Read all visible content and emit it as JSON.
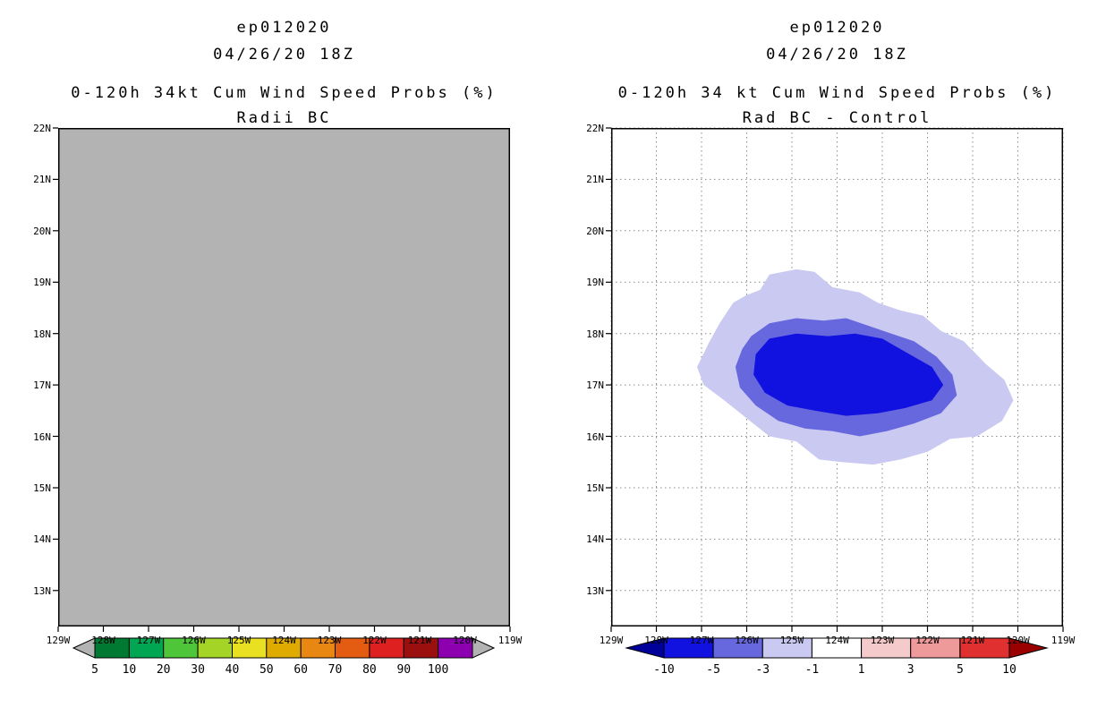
{
  "axes": {
    "lat_ticks": [
      "22N",
      "21N",
      "20N",
      "19N",
      "18N",
      "17N",
      "16N",
      "15N",
      "14N",
      "13N"
    ],
    "lon_ticks": [
      "129W",
      "128W",
      "127W",
      "126W",
      "125W",
      "124W",
      "123W",
      "122W",
      "121W",
      "120W",
      "119W"
    ],
    "lat_range": [
      12.3,
      22
    ],
    "lon_range": [
      129,
      119
    ],
    "grid_style": "dotted"
  },
  "chart_data": [
    {
      "type": "heatmap",
      "subtype": "filled-contour-probability-map",
      "title": "ep012020",
      "init_time": "04/26/20 18Z",
      "heading": "0-120h 34kt Cum Wind Speed Probs (%)",
      "subheading": "Radii BC",
      "map_background": "#b3b3b3",
      "grid": false,
      "contours": [],
      "field_note": "entire domain below lowest contour level (uniform gray)",
      "colorbar": {
        "levels": [
          5,
          10,
          20,
          30,
          40,
          50,
          60,
          70,
          80,
          90,
          100
        ],
        "labels": [
          "5",
          "10",
          "20",
          "30",
          "40",
          "50",
          "60",
          "70",
          "80",
          "90",
          "100"
        ],
        "cell_colors": [
          "#007a33",
          "#00a651",
          "#4fc639",
          "#a4d426",
          "#e8e020",
          "#e0ab00",
          "#e88711",
          "#e35c11",
          "#df2020",
          "#9c0f0f",
          "#8c00b0"
        ],
        "left_arrow_color": "#b3b3b3",
        "right_arrow_color": "#b3b3b3",
        "arrow_width": 24
      }
    },
    {
      "type": "heatmap",
      "subtype": "filled-contour-difference-map",
      "title": "ep012020",
      "init_time": "04/26/20 18Z",
      "heading": "0-120h 34 kt Cum Wind Speed Probs (%)",
      "subheading": "Rad BC - Control",
      "map_background": "#ffffff",
      "grid": true,
      "contours": [
        {
          "level": -1,
          "color": "#c9c9f2",
          "points": [
            [
              126.3,
              18.6
            ],
            [
              126.0,
              18.75
            ],
            [
              125.7,
              18.85
            ],
            [
              125.5,
              19.15
            ],
            [
              124.9,
              19.25
            ],
            [
              124.5,
              19.2
            ],
            [
              124.1,
              18.9
            ],
            [
              123.5,
              18.8
            ],
            [
              123.1,
              18.6
            ],
            [
              122.6,
              18.45
            ],
            [
              122.1,
              18.35
            ],
            [
              121.7,
              18.05
            ],
            [
              121.2,
              17.85
            ],
            [
              120.7,
              17.4
            ],
            [
              120.3,
              17.1
            ],
            [
              120.1,
              16.7
            ],
            [
              120.35,
              16.3
            ],
            [
              120.9,
              16.0
            ],
            [
              121.5,
              15.95
            ],
            [
              122.0,
              15.7
            ],
            [
              122.6,
              15.55
            ],
            [
              123.2,
              15.45
            ],
            [
              123.9,
              15.5
            ],
            [
              124.4,
              15.55
            ],
            [
              124.9,
              15.9
            ],
            [
              125.5,
              16.0
            ],
            [
              126.0,
              16.35
            ],
            [
              126.5,
              16.7
            ],
            [
              126.95,
              17.0
            ],
            [
              127.1,
              17.35
            ],
            [
              126.85,
              17.8
            ],
            [
              126.6,
              18.2
            ]
          ]
        },
        {
          "level": -3,
          "color": "#6868de",
          "points": [
            [
              125.9,
              17.95
            ],
            [
              125.5,
              18.2
            ],
            [
              124.9,
              18.3
            ],
            [
              124.3,
              18.25
            ],
            [
              123.8,
              18.3
            ],
            [
              123.3,
              18.15
            ],
            [
              122.8,
              18.0
            ],
            [
              122.3,
              17.85
            ],
            [
              121.8,
              17.55
            ],
            [
              121.45,
              17.2
            ],
            [
              121.35,
              16.8
            ],
            [
              121.7,
              16.45
            ],
            [
              122.3,
              16.25
            ],
            [
              122.9,
              16.1
            ],
            [
              123.5,
              16.0
            ],
            [
              124.1,
              16.1
            ],
            [
              124.7,
              16.15
            ],
            [
              125.3,
              16.3
            ],
            [
              125.8,
              16.6
            ],
            [
              126.15,
              16.95
            ],
            [
              126.25,
              17.35
            ],
            [
              126.1,
              17.7
            ]
          ]
        },
        {
          "level": -5,
          "color": "#1212e0",
          "points": [
            [
              125.5,
              17.9
            ],
            [
              124.9,
              18.0
            ],
            [
              124.2,
              17.95
            ],
            [
              123.6,
              18.0
            ],
            [
              123.0,
              17.9
            ],
            [
              122.4,
              17.6
            ],
            [
              121.9,
              17.35
            ],
            [
              121.65,
              17.0
            ],
            [
              121.9,
              16.7
            ],
            [
              122.5,
              16.55
            ],
            [
              123.1,
              16.45
            ],
            [
              123.8,
              16.4
            ],
            [
              124.5,
              16.5
            ],
            [
              125.1,
              16.6
            ],
            [
              125.6,
              16.85
            ],
            [
              125.85,
              17.2
            ],
            [
              125.8,
              17.6
            ]
          ]
        }
      ],
      "colorbar": {
        "levels": [
          -10,
          -5,
          -3,
          -1,
          1,
          3,
          5,
          10
        ],
        "labels": [
          "-10",
          "-5",
          "-3",
          "-1",
          "1",
          "3",
          "5",
          "10"
        ],
        "cell_colors": [
          "#1212e0",
          "#6868de",
          "#c9c9f2",
          "#ffffff",
          "#f5caca",
          "#ef9a9a",
          "#e03030"
        ],
        "left_arrow_color": "#00009a",
        "right_arrow_color": "#9a0000",
        "arrow_width": 42
      }
    }
  ]
}
